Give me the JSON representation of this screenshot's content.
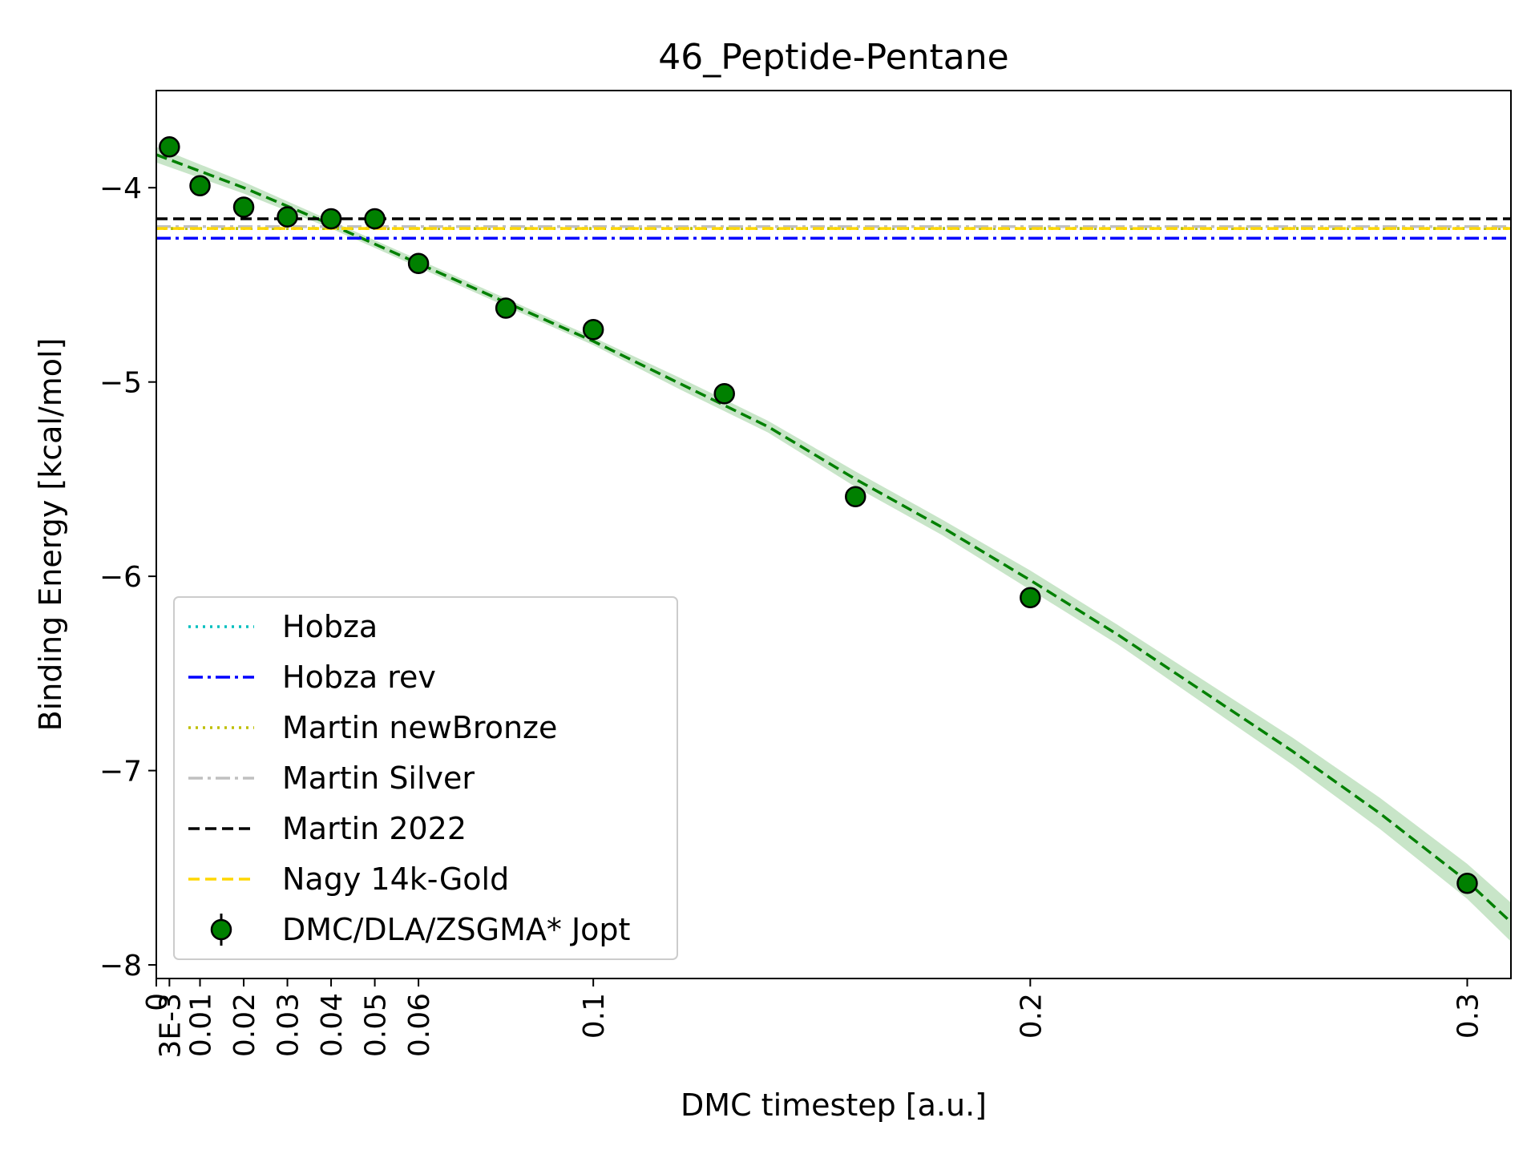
{
  "chart_data": {
    "type": "scatter",
    "title": "46_Peptide-Pentane",
    "xlabel": "DMC timestep [a.u.]",
    "ylabel": "Binding Energy [kcal/mol]",
    "xlim": [
      0,
      0.31
    ],
    "ylim": [
      -8.07,
      -3.5
    ],
    "x_ticks": [
      {
        "value": 0,
        "label": "0"
      },
      {
        "value": 0.003,
        "label": "3E-3"
      },
      {
        "value": 0.01,
        "label": "0.01"
      },
      {
        "value": 0.02,
        "label": "0.02"
      },
      {
        "value": 0.03,
        "label": "0.03"
      },
      {
        "value": 0.04,
        "label": "0.04"
      },
      {
        "value": 0.05,
        "label": "0.05"
      },
      {
        "value": 0.06,
        "label": "0.06"
      },
      {
        "value": 0.1,
        "label": "0.1"
      },
      {
        "value": 0.2,
        "label": "0.2"
      },
      {
        "value": 0.3,
        "label": "0.3"
      }
    ],
    "y_ticks": [
      {
        "value": -4,
        "label": "−4"
      },
      {
        "value": -5,
        "label": "−5"
      },
      {
        "value": -6,
        "label": "−6"
      },
      {
        "value": -7,
        "label": "−7"
      },
      {
        "value": -8,
        "label": "−8"
      }
    ],
    "grid": false,
    "legend_position": "lower-left",
    "reference_lines": [
      {
        "name": "Hobza",
        "value": -4.21,
        "color": "#00bfbf",
        "style": "dotted"
      },
      {
        "name": "Hobza rev",
        "value": -4.26,
        "color": "#0000ff",
        "style": "dashdot"
      },
      {
        "name": "Martin newBronze",
        "value": -4.21,
        "color": "#bfbf00",
        "style": "dotted"
      },
      {
        "name": "Martin Silver",
        "value": -4.2,
        "color": "#c0c0c0",
        "style": "dashdot"
      },
      {
        "name": "Martin 2022",
        "value": -4.16,
        "color": "#000000",
        "style": "dashed"
      },
      {
        "name": "Nagy 14k-Gold",
        "value": -4.21,
        "color": "#ffd700",
        "style": "dashed"
      }
    ],
    "series": [
      {
        "name": "DMC/DLA/ZSGMA* Jopt",
        "color": "#008000",
        "x": [
          0.003,
          0.01,
          0.02,
          0.03,
          0.04,
          0.05,
          0.06,
          0.08,
          0.1,
          0.13,
          0.16,
          0.2,
          0.3
        ],
        "y": [
          -3.79,
          -3.99,
          -4.1,
          -4.15,
          -4.16,
          -4.16,
          -4.39,
          -4.62,
          -4.73,
          -5.06,
          -5.59,
          -6.11,
          -7.58
        ],
        "yerr": [
          0.05,
          0.05,
          0.05,
          0.05,
          0.05,
          0.05,
          0.05,
          0.05,
          0.05,
          0.05,
          0.05,
          0.05,
          0.05
        ]
      }
    ],
    "fit": {
      "color": "#008000",
      "band_color": "#a3d4a3",
      "x": [
        0,
        0.02,
        0.04,
        0.06,
        0.08,
        0.1,
        0.12,
        0.14,
        0.16,
        0.18,
        0.2,
        0.22,
        0.24,
        0.26,
        0.28,
        0.3,
        0.31
      ],
      "y": [
        -3.83,
        -4.0,
        -4.19,
        -4.39,
        -4.59,
        -4.79,
        -5.01,
        -5.23,
        -5.5,
        -5.75,
        -6.02,
        -6.3,
        -6.6,
        -6.9,
        -7.22,
        -7.57,
        -7.78
      ],
      "band_halfwidth": [
        0.04,
        0.03,
        0.02,
        0.02,
        0.02,
        0.02,
        0.03,
        0.03,
        0.04,
        0.04,
        0.05,
        0.05,
        0.06,
        0.07,
        0.08,
        0.09,
        0.1
      ]
    }
  }
}
